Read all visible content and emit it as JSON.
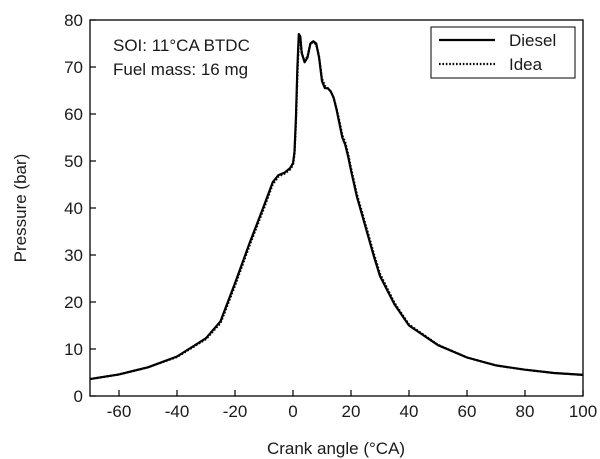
{
  "chart_data": {
    "type": "line",
    "xlabel": "Crank angle (°CA)",
    "ylabel": "Pressure (bar)",
    "xlim": [
      -70,
      100
    ],
    "ylim": [
      0,
      80
    ],
    "xticks": [
      -60,
      -40,
      -20,
      0,
      20,
      40,
      60,
      80,
      100
    ],
    "yticks": [
      0,
      10,
      20,
      30,
      40,
      50,
      60,
      70,
      80
    ],
    "grid": false,
    "legend_position": "top-right",
    "annotations": [
      "SOI: 11°CA BTDC",
      "Fuel mass: 16 mg"
    ],
    "series": [
      {
        "name": "Diesel",
        "style": "solid",
        "x": [
          -70,
          -60,
          -50,
          -40,
          -30,
          -25,
          -20,
          -15,
          -10,
          -7,
          -5,
          -3,
          -1,
          0,
          0.5,
          1,
          1.5,
          2,
          2.5,
          3,
          4,
          5,
          6,
          7,
          8,
          9,
          10,
          11,
          12,
          13,
          14,
          15,
          16,
          17,
          18,
          19,
          20,
          22,
          25,
          28,
          30,
          35,
          40,
          50,
          60,
          70,
          80,
          90,
          100
        ],
        "y": [
          3.6,
          4.6,
          6.1,
          8.4,
          12.3,
          15.9,
          24,
          32.5,
          40.5,
          45.5,
          47,
          47.5,
          48.5,
          49.5,
          52,
          59,
          70,
          77,
          76.5,
          73,
          71,
          72,
          75,
          75.5,
          75,
          72,
          67,
          65.5,
          65.5,
          64.8,
          63.5,
          61,
          58,
          55,
          53.5,
          51,
          48,
          42.5,
          36,
          29.5,
          25.5,
          19.5,
          15,
          10.8,
          8.2,
          6.5,
          5.6,
          4.9,
          4.5
        ]
      },
      {
        "name": "Idea",
        "style": "dotted",
        "x": [
          -70,
          -60,
          -50,
          -40,
          -30,
          -25,
          -20,
          -15,
          -10,
          -7,
          -5,
          -3,
          -1,
          0,
          0.5,
          1,
          1.5,
          2,
          2.5,
          3,
          4,
          5,
          6,
          7,
          8,
          9,
          10,
          11,
          12,
          13,
          14,
          15,
          16,
          17,
          18,
          19,
          20,
          22,
          25,
          28,
          30,
          35,
          40,
          50,
          60,
          70,
          80,
          90,
          100
        ],
        "y": [
          3.6,
          4.6,
          6.1,
          8.3,
          12.1,
          15.5,
          23.5,
          32,
          40,
          45,
          46.7,
          47.3,
          48.2,
          49.2,
          51.5,
          58,
          68.5,
          75.5,
          76,
          73,
          71.2,
          72.3,
          75,
          75.3,
          74.8,
          72.2,
          67.5,
          66,
          65.5,
          64.8,
          63.5,
          61.2,
          58.5,
          55.5,
          54,
          51.5,
          48.5,
          43,
          36.5,
          30,
          26,
          19.8,
          15.2,
          10.9,
          8.2,
          6.5,
          5.6,
          4.9,
          4.5
        ]
      }
    ]
  }
}
